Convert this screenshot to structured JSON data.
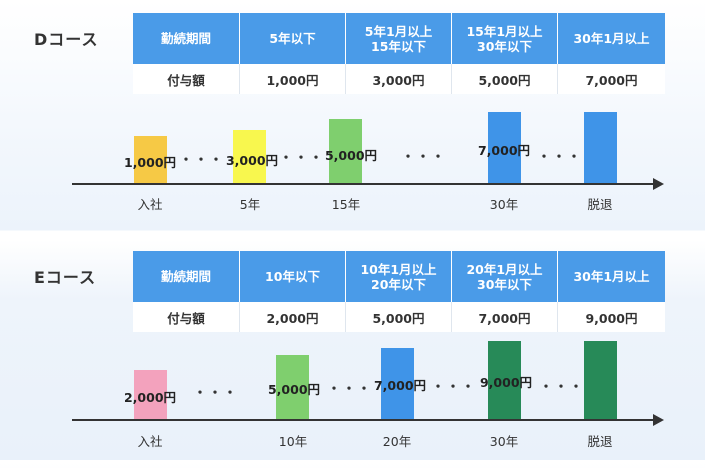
{
  "colors": {
    "header": "#4a9be8",
    "yellow": "#f6c945",
    "lightyellow": "#f8f74e",
    "green": "#7fcf6e",
    "blue": "#3f94e8",
    "pink": "#f3a2bd",
    "darkgreen": "#278a58"
  },
  "course_d": {
    "label": "Dコース",
    "headers": [
      "勤続期間",
      "5年以下",
      "5年1月以上\n15年以下",
      "15年1月以上\n30年以下",
      "30年1月以上"
    ],
    "row": [
      "付与額",
      "1,000円",
      "3,000円",
      "5,000円",
      "7,000円"
    ],
    "bars": [
      {
        "amount": "1,000円",
        "color": "yellow"
      },
      {
        "amount": "3,000円",
        "color": "lightyellow"
      },
      {
        "amount": "5,000円",
        "color": "green"
      },
      {
        "amount": "7,000円",
        "color": "blue"
      },
      {
        "amount": "",
        "color": "blue"
      }
    ],
    "dots": [
      "・・・",
      "・・・",
      "・・・",
      "・・・"
    ],
    "ticks": [
      "入社",
      "5年",
      "15年",
      "30年",
      "脱退"
    ]
  },
  "course_e": {
    "label": "Eコース",
    "headers": [
      "勤続期間",
      "10年以下",
      "10年1月以上\n20年以下",
      "20年1月以上\n30年以下",
      "30年1月以上"
    ],
    "row": [
      "付与額",
      "2,000円",
      "5,000円",
      "7,000円",
      "9,000円"
    ],
    "bars": [
      {
        "amount": "2,000円",
        "color": "pink"
      },
      {
        "amount": "5,000円",
        "color": "green"
      },
      {
        "amount": "7,000円",
        "color": "blue"
      },
      {
        "amount": "9,000円",
        "color": "darkgreen"
      },
      {
        "amount": "",
        "color": "darkgreen"
      }
    ],
    "dots": [
      "・・・",
      "・・・",
      "・・・",
      "・・・"
    ],
    "ticks": [
      "入社",
      "10年",
      "20年",
      "30年",
      "脱退"
    ]
  }
}
